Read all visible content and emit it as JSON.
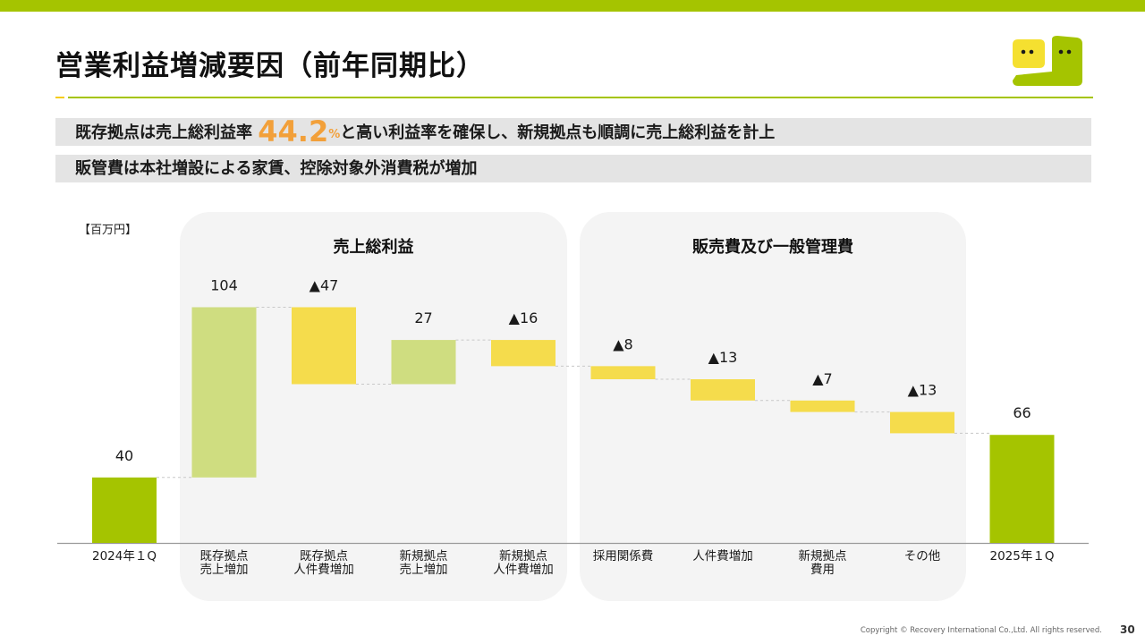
{
  "header": {
    "title": "営業利益増減要因（前年同期比）"
  },
  "banners": {
    "line1_prefix": "既存拠点は売上総利益率 ",
    "line1_value": "44.2",
    "line1_unit": "%",
    "line1_suffix": "と高い利益率を確保し、新規拠点も順調に売上総利益を計上",
    "line2": "販管費は本社増設による家賃、控除対象外消費税が増加"
  },
  "colors": {
    "accent_green": "#a5c400",
    "light_green": "#cfdd80",
    "yellow": "#f5dc4c",
    "orange": "#f2a03a",
    "logo_yellow": "#f5e030"
  },
  "chart_data": {
    "type": "bar",
    "subtype": "waterfall",
    "unit_label": "【百万円】",
    "groups": [
      {
        "title": "売上総利益",
        "categories": [
          1,
          2,
          3,
          4
        ]
      },
      {
        "title": "販売費及び一般管理費",
        "categories": [
          5,
          6,
          7,
          8
        ]
      }
    ],
    "categories": [
      [
        "2024年１Q"
      ],
      [
        "既存拠点",
        "売上増加"
      ],
      [
        "既存拠点",
        "人件費増加"
      ],
      [
        "新規拠点",
        "売上増加"
      ],
      [
        "新規拠点",
        "人件費増加"
      ],
      [
        "採用関係費"
      ],
      [
        "人件費増加"
      ],
      [
        "新規拠点",
        "費用"
      ],
      [
        "その他"
      ],
      [
        "2025年１Q"
      ]
    ],
    "values": [
      40,
      104,
      -47,
      27,
      -16,
      -8,
      -13,
      -7,
      -13,
      66
    ],
    "kinds": [
      "total",
      "increase",
      "decrease",
      "increase",
      "decrease",
      "decrease",
      "decrease",
      "decrease",
      "decrease",
      "total"
    ],
    "data_labels": [
      "40",
      "104",
      "▲47",
      "27",
      "▲16",
      "▲8",
      "▲13",
      "▲7",
      "▲13",
      "66"
    ],
    "ylim": [
      0,
      150
    ]
  },
  "footer": {
    "copyright": "Copyright © Recovery International Co.,Ltd. All rights reserved.",
    "page_number": "30"
  }
}
